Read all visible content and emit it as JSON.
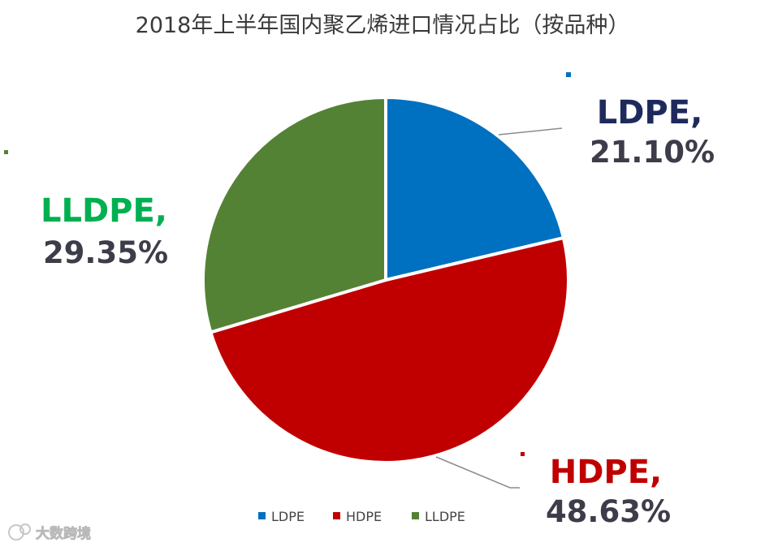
{
  "chart_data": {
    "type": "pie",
    "title": "2018年上半年国内聚乙烯进口情况占比（按品种）",
    "categories": [
      "LDPE",
      "HDPE",
      "LLDPE"
    ],
    "values": [
      21.1,
      48.63,
      29.35
    ],
    "data_labels": [
      {
        "name": "LDPE,",
        "value": "21.10%"
      },
      {
        "name": "HDPE,",
        "value": "48.63%"
      },
      {
        "name": "LLDPE,",
        "value": "29.35%"
      }
    ],
    "legend": {
      "placement": "bottom",
      "entries": [
        "LDPE",
        "HDPE",
        "LLDPE"
      ]
    },
    "colors": {
      "LDPE": "#0070c0",
      "HDPE": "#c00000",
      "LLDPE": "#548235",
      "ldpe_label": "#1f2a5c",
      "hdpe_label": "#c00000",
      "lldpe_label": "#00b050"
    },
    "start_angle_deg": 0,
    "direction": "clockwise"
  },
  "watermark": {
    "text": "大数跨境",
    "icon": "logo-icon"
  }
}
